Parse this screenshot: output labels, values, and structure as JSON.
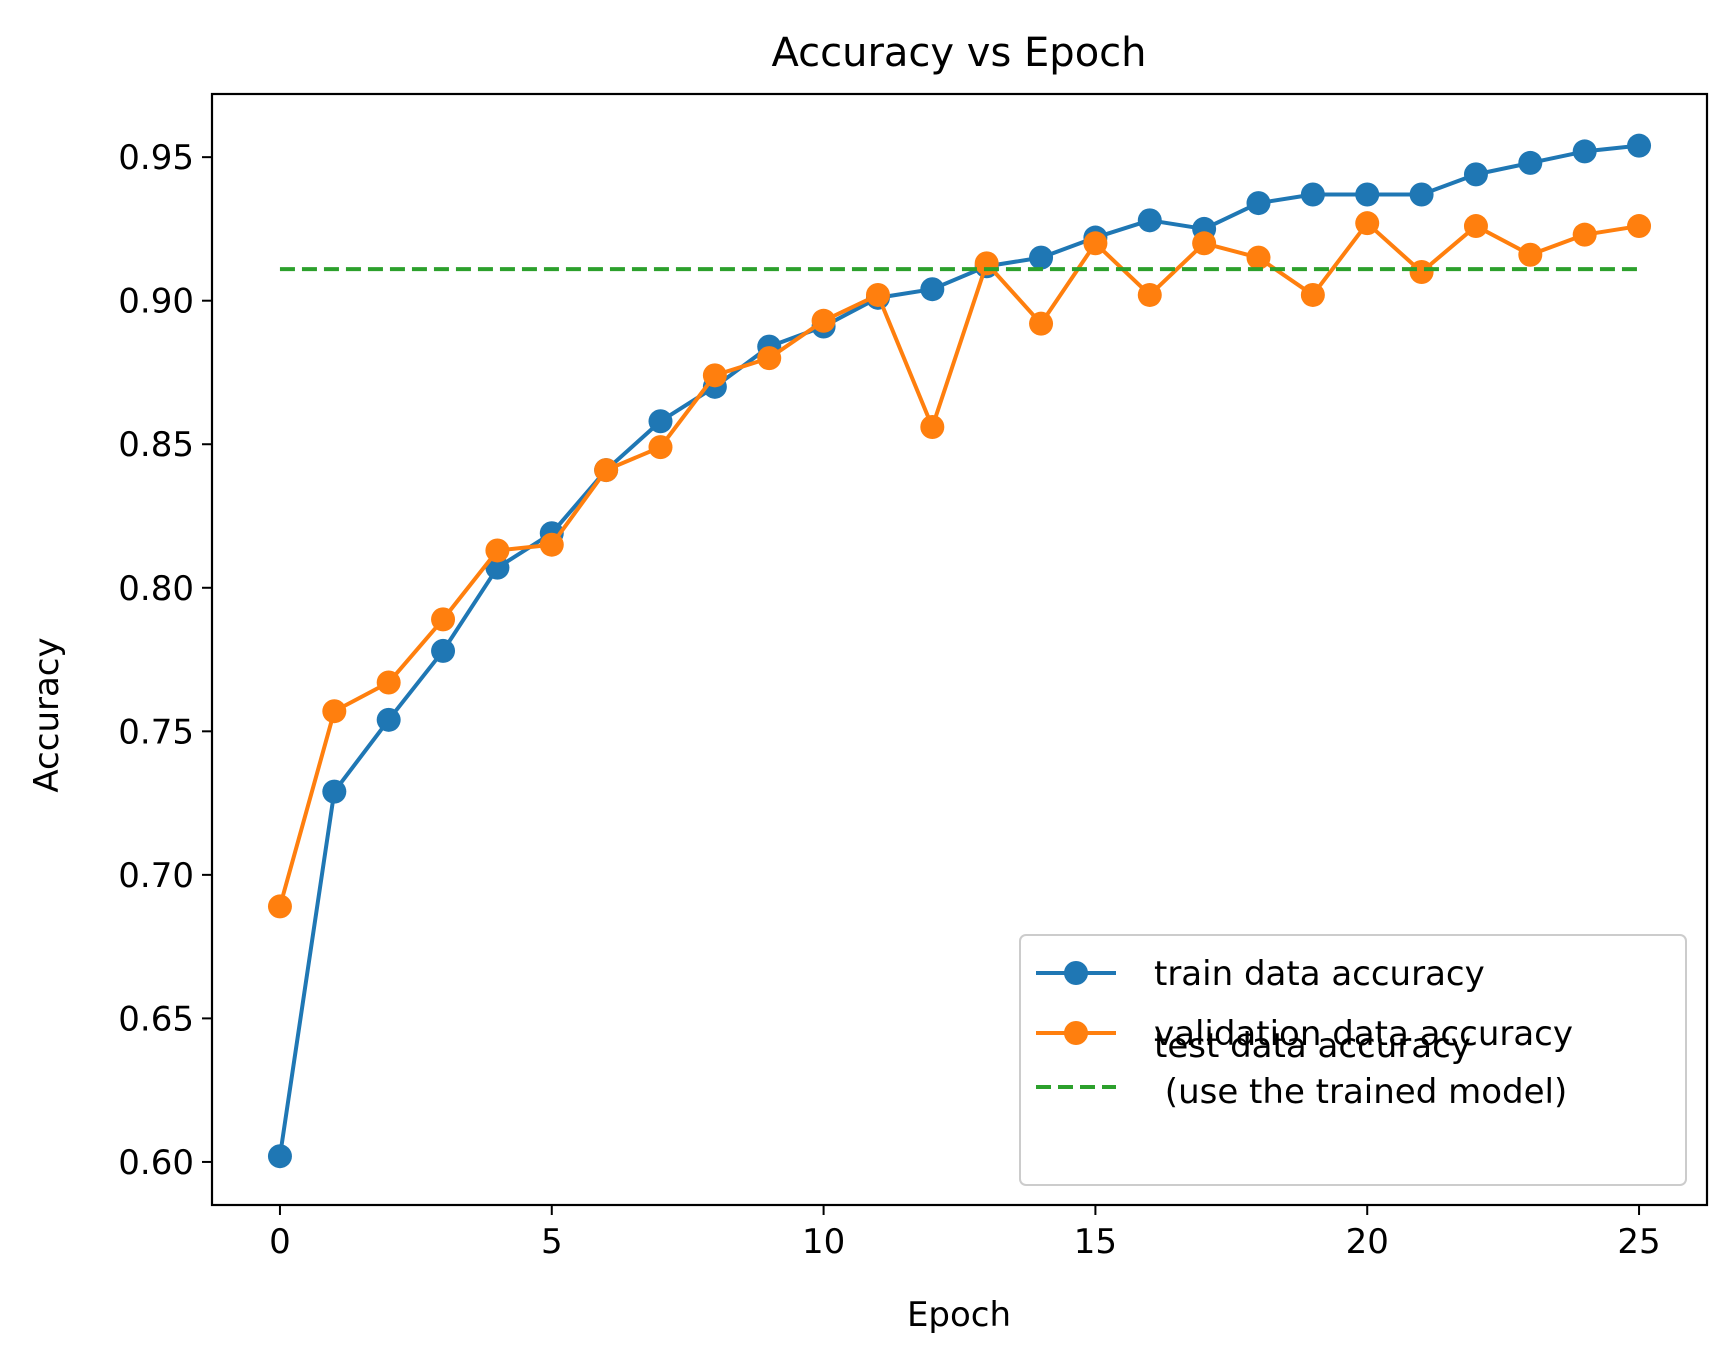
{
  "chart_data": {
    "type": "line",
    "title": "Accuracy vs Epoch",
    "xlabel": "Epoch",
    "ylabel": "Accuracy",
    "xlim": [
      -1.25,
      26.25
    ],
    "ylim": [
      0.585,
      0.972
    ],
    "xticks": [
      0,
      5,
      10,
      15,
      20,
      25
    ],
    "xtick_labels": [
      "0",
      "5",
      "10",
      "15",
      "20",
      "25"
    ],
    "yticks": [
      0.6,
      0.65,
      0.7,
      0.75,
      0.8,
      0.85,
      0.9,
      0.95
    ],
    "ytick_labels": [
      "0.60",
      "0.65",
      "0.70",
      "0.75",
      "0.80",
      "0.85",
      "0.90",
      "0.95"
    ],
    "grid": false,
    "legend_position": "lower-right",
    "x": [
      0,
      1,
      2,
      3,
      4,
      5,
      6,
      7,
      8,
      9,
      10,
      11,
      12,
      13,
      14,
      15,
      16,
      17,
      18,
      19,
      20,
      21,
      22,
      23,
      24,
      25
    ],
    "series": [
      {
        "name": "train data accuracy",
        "color": "#1f77b4",
        "style": "solid-marker",
        "values": [
          0.602,
          0.729,
          0.754,
          0.778,
          0.807,
          0.819,
          0.841,
          0.858,
          0.87,
          0.884,
          0.891,
          0.901,
          0.904,
          0.912,
          0.915,
          0.922,
          0.928,
          0.925,
          0.934,
          0.937,
          0.937,
          0.937,
          0.944,
          0.948,
          0.952,
          0.954
        ]
      },
      {
        "name": "validation data accuracy",
        "color": "#ff7f0e",
        "style": "solid-marker",
        "values": [
          0.689,
          0.757,
          0.767,
          0.789,
          0.813,
          0.815,
          0.841,
          0.849,
          0.874,
          0.88,
          0.893,
          0.902,
          0.856,
          0.913,
          0.892,
          0.92,
          0.902,
          0.92,
          0.915,
          0.902,
          0.927,
          0.91,
          0.926,
          0.916,
          0.923,
          0.926
        ]
      },
      {
        "name": "test data accuracy\n (use the trained model)",
        "color": "#2ca02c",
        "style": "dashed",
        "x_range": [
          0,
          25
        ],
        "value": 0.911
      }
    ]
  }
}
